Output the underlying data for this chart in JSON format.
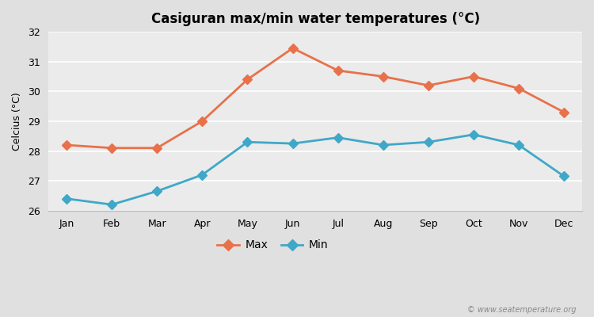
{
  "title": "Casiguran max/min water temperatures (°C)",
  "ylabel": "Celcius (°C)",
  "months": [
    "Jan",
    "Feb",
    "Mar",
    "Apr",
    "May",
    "Jun",
    "Jul",
    "Aug",
    "Sep",
    "Oct",
    "Nov",
    "Dec"
  ],
  "max_temps": [
    28.2,
    28.1,
    28.1,
    29.0,
    30.4,
    31.45,
    30.7,
    30.5,
    30.2,
    30.5,
    30.1,
    29.3
  ],
  "min_temps": [
    26.4,
    26.2,
    26.65,
    27.2,
    28.3,
    28.25,
    28.45,
    28.2,
    28.3,
    28.55,
    28.2,
    27.15
  ],
  "max_color": "#e8714a",
  "min_color": "#3fa8c8",
  "outer_bg_color": "#e0e0e0",
  "plot_bg_color": "#ebebeb",
  "ylim": [
    26,
    32
  ],
  "yticks": [
    26,
    27,
    28,
    29,
    30,
    31,
    32
  ],
  "grid_color": "#ffffff",
  "watermark": "© www.seatemperature.org",
  "legend_labels": [
    "Max",
    "Min"
  ],
  "marker": "D",
  "linewidth": 2.0,
  "markersize": 6
}
